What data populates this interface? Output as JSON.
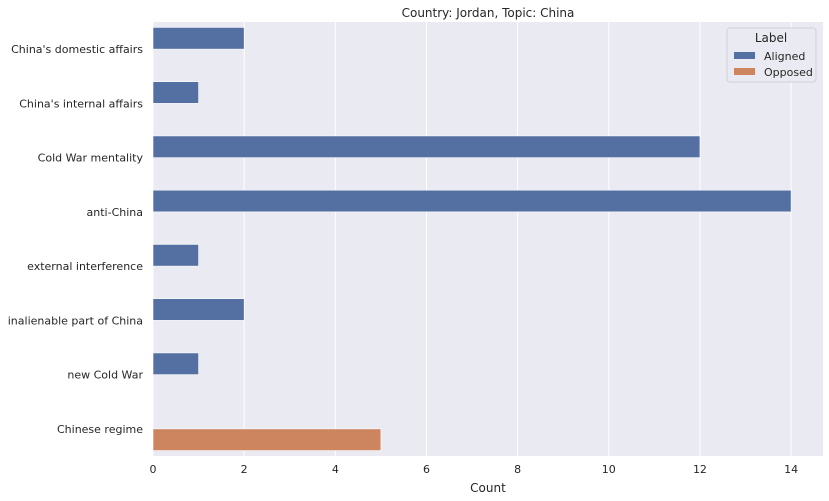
{
  "chart_data": {
    "type": "bar",
    "orientation": "horizontal",
    "title": "Country: Jordan, Topic: China",
    "xlabel": "Count",
    "ylabel": "",
    "xlim": [
      0,
      14.7
    ],
    "xticks": [
      0,
      2,
      4,
      6,
      8,
      10,
      12,
      14
    ],
    "grid": true,
    "legend_title": "Label",
    "legend_position": "top-right",
    "categories": [
      "China's domestic affairs",
      "China's internal affairs",
      "Cold War mentality",
      "anti-China",
      "external interference",
      "inalienable part of China",
      "new Cold War",
      "Chinese regime"
    ],
    "series": [
      {
        "name": "Aligned",
        "color": "#5470a2",
        "values": [
          2,
          1,
          12,
          14,
          1,
          2,
          1,
          null
        ]
      },
      {
        "name": "Opposed",
        "color": "#cd8560",
        "values": [
          null,
          null,
          null,
          null,
          null,
          null,
          null,
          5
        ]
      }
    ],
    "background_color": "#eaeaf2"
  }
}
